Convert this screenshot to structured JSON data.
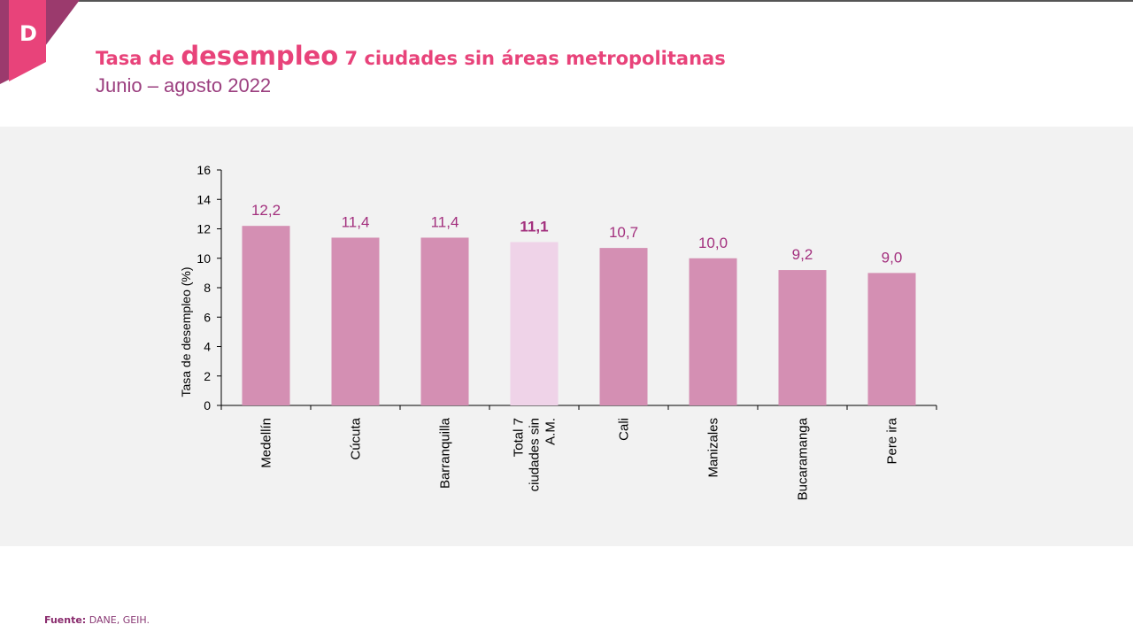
{
  "header": {
    "title_prefix": "Tasa de ",
    "title_emphasis": "desempleo",
    "title_suffix": " 7 ciudades sin áreas metropolitanas",
    "subtitle": "Junio – agosto 2022",
    "logo": "D"
  },
  "footer": {
    "source_label": "Fuente:",
    "source_text": " DANE, GEIH."
  },
  "colors": {
    "bar": "#d48fb3",
    "highlight_bar": "#efd3e8",
    "label": "#a3307e",
    "title": "#e8437a",
    "panel": "#f2f2f2"
  },
  "chart_data": {
    "type": "bar",
    "categories": [
      "Medellín",
      "Cúcuta",
      "Barranquilla",
      "Total 7 ciudades sin A.M.",
      "Cali",
      "Manizales",
      "Bucaramanga",
      "Pereira"
    ],
    "category_lines": [
      [
        "Medellín"
      ],
      [
        "Cúcuta"
      ],
      [
        "Barranquilla"
      ],
      [
        "Total 7",
        "ciudades sin",
        "A.M."
      ],
      [
        "Cali"
      ],
      [
        "Manizales"
      ],
      [
        "Bucaramanga"
      ],
      [
        "Pere ira"
      ]
    ],
    "values": [
      12.2,
      11.4,
      11.4,
      11.1,
      10.7,
      10.0,
      9.2,
      9.0
    ],
    "data_labels": [
      "12,2",
      "11,4",
      "11,4",
      "11,1",
      "10,7",
      "10,0",
      "9,2",
      "9,0"
    ],
    "highlight_index": 3,
    "ylabel": "Tasa de desempleo (%)",
    "xlabel": "",
    "ylim": [
      0,
      16
    ],
    "yticks": [
      0,
      2,
      4,
      6,
      8,
      10,
      12,
      14,
      16
    ],
    "grid": false,
    "legend": "none"
  }
}
